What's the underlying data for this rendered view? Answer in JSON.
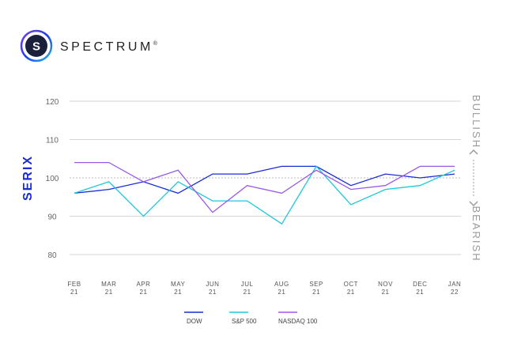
{
  "brand": {
    "logo_letter": "S",
    "name": "SPECTRUM",
    "mark": "®",
    "logo_colors": [
      "#7b3fe4",
      "#1a3cf0",
      "#1fb8e8"
    ]
  },
  "colors": {
    "dow": "#1a2bd8",
    "sp500": "#1ec8d8",
    "nasdaq": "#9b59e8",
    "ylabel": "#1a2bd8",
    "side_labels": "#9a9a9a",
    "grid": "#d6d6d6",
    "ticks": "#555555"
  },
  "chart_data": {
    "type": "line",
    "ylabel": "SERIX",
    "ylim": [
      80,
      120
    ],
    "yticks": [
      80,
      90,
      100,
      110,
      120
    ],
    "reference_line": 100,
    "grid": true,
    "legend_position": "bottom",
    "x_tick_labels": [
      [
        "FEB",
        "21"
      ],
      [
        "MAR",
        "21"
      ],
      [
        "APR",
        "21"
      ],
      [
        "MAY",
        "21"
      ],
      [
        "JUN",
        "21"
      ],
      [
        "JUL",
        "21"
      ],
      [
        "AUG",
        "21"
      ],
      [
        "SEP",
        "21"
      ],
      [
        "OCT",
        "21"
      ],
      [
        "NOV",
        "21"
      ],
      [
        "DEC",
        "21"
      ],
      [
        "JAN",
        "22"
      ]
    ],
    "categories": [
      "FEB 21",
      "MAR 21",
      "APR 21",
      "MAY 21",
      "JUN 21",
      "JUL 21",
      "AUG 21",
      "SEP 21",
      "OCT 21",
      "NOV 21",
      "DEC 21",
      "JAN 22"
    ],
    "series": [
      {
        "name": "DOW",
        "color": "#1a2bd8",
        "values": [
          96,
          97,
          99,
          96,
          101,
          101,
          103,
          103,
          98,
          101,
          100,
          101
        ]
      },
      {
        "name": "S&P 500",
        "color": "#1ec8d8",
        "values": [
          96,
          99,
          90,
          99,
          94,
          94,
          88,
          103,
          93,
          97,
          98,
          102
        ]
      },
      {
        "name": "NASDAQ 100",
        "color": "#9b59e8",
        "values": [
          104,
          104,
          99,
          102,
          91,
          98,
          96,
          102,
          97,
          98,
          103,
          103
        ]
      }
    ],
    "side_labels": {
      "top": "BULLISH",
      "bottom": "BEARISH"
    }
  }
}
